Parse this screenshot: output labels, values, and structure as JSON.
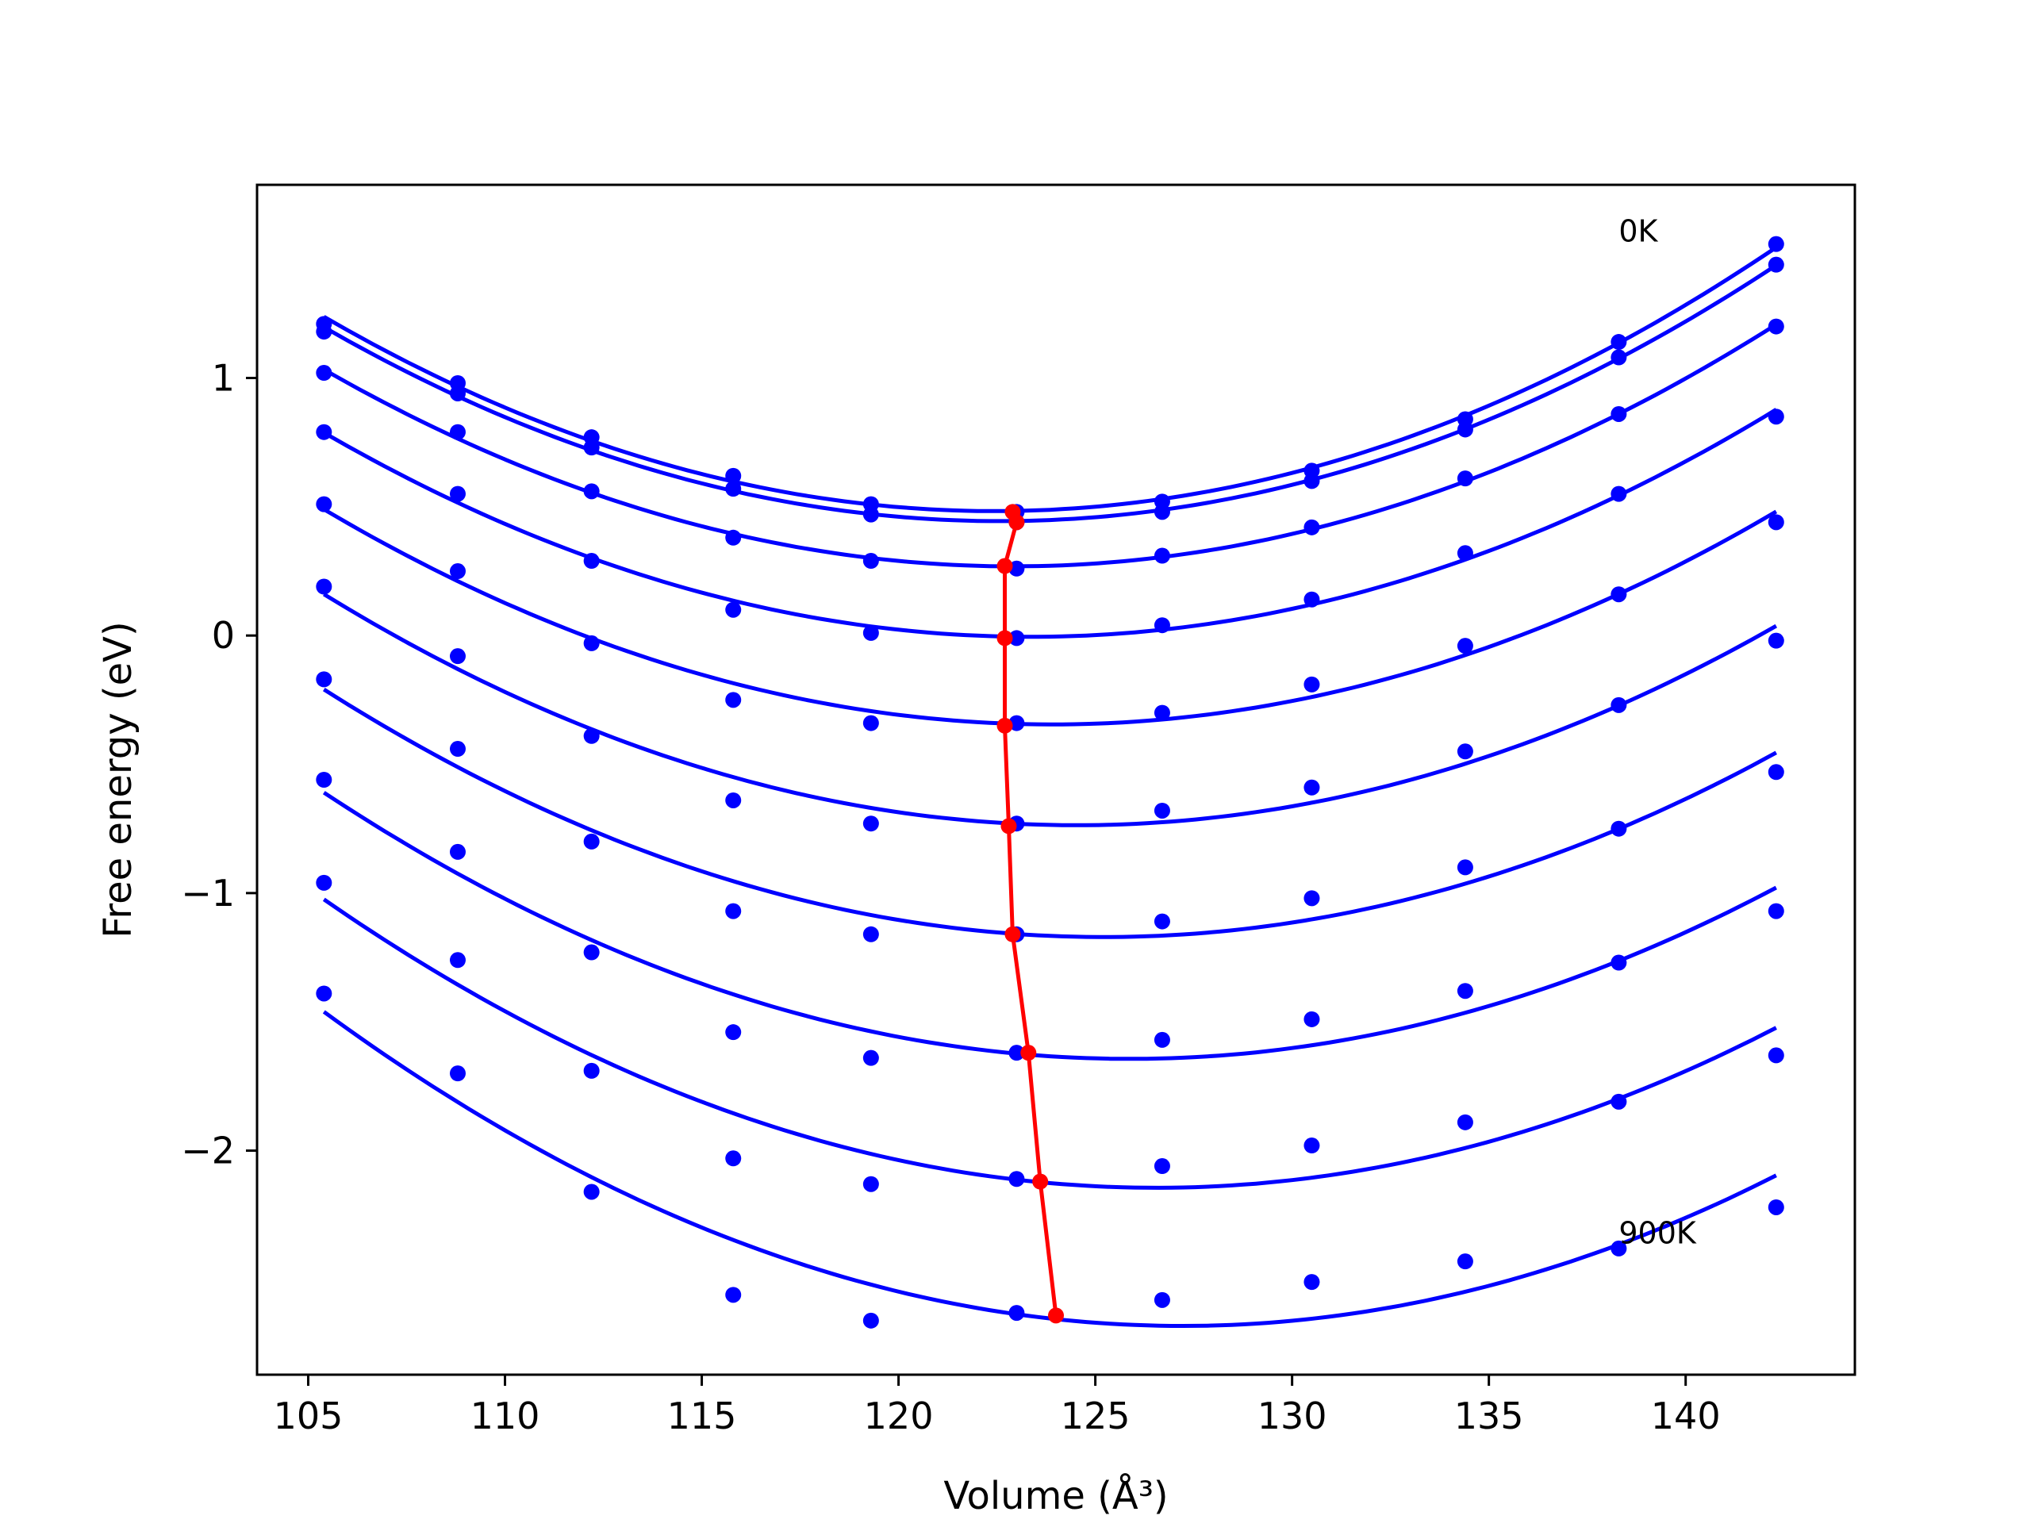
{
  "chart_data": {
    "type": "line",
    "title": "",
    "xlabel": "Volume (Å³)",
    "ylabel": "Free energy (eV)",
    "xlim": [
      103.7,
      144.3
    ],
    "ylim": [
      -2.87,
      1.75
    ],
    "xticks": [
      105,
      110,
      115,
      120,
      125,
      130,
      135,
      140
    ],
    "yticks": [
      -2,
      -1,
      0,
      1
    ],
    "ytick_labels": [
      "−2",
      "−1",
      "0",
      "1"
    ],
    "grid": false,
    "legend": "none",
    "colors": {
      "series": "#0000ff",
      "minima": "#ff0000",
      "axes": "#000000"
    },
    "x": [
      105.4,
      108.8,
      112.2,
      115.8,
      119.3,
      123.0,
      126.7,
      130.5,
      134.4,
      138.3,
      142.3
    ],
    "series": [
      {
        "values": [
          1.21,
          0.98,
          0.77,
          0.62,
          0.51,
          0.48,
          0.52,
          0.64,
          0.84,
          1.14,
          1.52
        ]
      },
      {
        "values": [
          1.18,
          0.94,
          0.73,
          0.57,
          0.47,
          0.44,
          0.48,
          0.6,
          0.8,
          1.08,
          1.44
        ]
      },
      {
        "values": [
          1.02,
          0.79,
          0.56,
          0.38,
          0.29,
          0.26,
          0.31,
          0.42,
          0.61,
          0.86,
          1.2
        ]
      },
      {
        "values": [
          0.79,
          0.55,
          0.29,
          0.1,
          0.01,
          -0.01,
          0.04,
          0.14,
          0.32,
          0.55,
          0.85
        ]
      },
      {
        "values": [
          0.51,
          0.25,
          -0.03,
          -0.25,
          -0.34,
          -0.34,
          -0.3,
          -0.19,
          -0.04,
          0.16,
          0.44
        ]
      },
      {
        "values": [
          0.19,
          -0.08,
          -0.39,
          -0.64,
          -0.73,
          -0.73,
          -0.68,
          -0.59,
          -0.45,
          -0.27,
          -0.02
        ]
      },
      {
        "values": [
          -0.17,
          -0.44,
          -0.8,
          -1.07,
          -1.16,
          -1.16,
          -1.11,
          -1.02,
          -0.9,
          -0.75,
          -0.53
        ]
      },
      {
        "values": [
          -0.56,
          -0.84,
          -1.23,
          -1.54,
          -1.64,
          -1.62,
          -1.57,
          -1.49,
          -1.38,
          -1.27,
          -1.07
        ]
      },
      {
        "values": [
          -0.96,
          -1.26,
          -1.69,
          -2.03,
          -2.13,
          -2.11,
          -2.06,
          -1.98,
          -1.89,
          -1.81,
          -1.63
        ]
      },
      {
        "values": [
          -1.39,
          -1.7,
          -2.16,
          -2.56,
          -2.66,
          -2.63,
          -2.58,
          -2.51,
          -2.43,
          -2.38,
          -2.22
        ]
      }
    ],
    "minima": {
      "v": [
        122.9,
        123.0,
        122.7,
        122.7,
        122.7,
        122.8,
        122.9,
        123.3,
        123.6,
        124.0
      ],
      "f": [
        0.48,
        0.44,
        0.27,
        -0.01,
        -0.35,
        -0.74,
        -1.16,
        -1.62,
        -2.12,
        -2.64
      ]
    },
    "annotations": [
      {
        "text": "0K",
        "x": 138.3,
        "y": 1.57
      },
      {
        "text": "900K",
        "x": 138.3,
        "y": -2.32
      }
    ]
  }
}
